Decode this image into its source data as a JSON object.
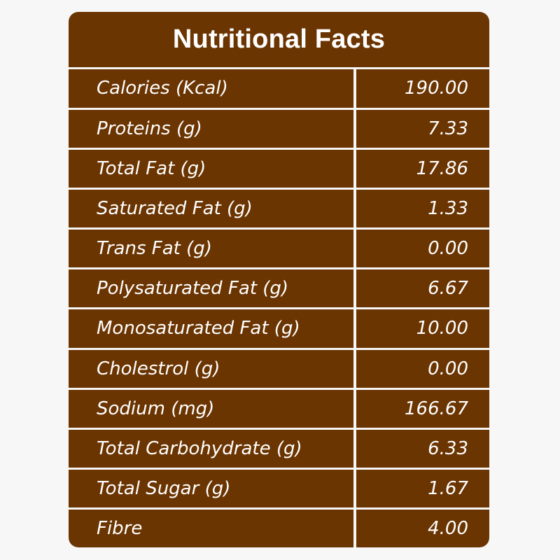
{
  "title": "Nutritional Facts",
  "rows": [
    {
      "label": "Calories (Kcal)",
      "value": "190.00"
    },
    {
      "label": "Proteins (g)",
      "value": "7.33"
    },
    {
      "label": "Total Fat (g)",
      "value": "17.86"
    },
    {
      "label": "Saturated Fat (g)",
      "value": "1.33"
    },
    {
      "label": "Trans Fat (g)",
      "value": "0.00"
    },
    {
      "label": "Polysaturated Fat (g)",
      "value": "6.67"
    },
    {
      "label": "Monosaturated Fat (g)",
      "value": "10.00"
    },
    {
      "label": "Cholestrol (g)",
      "value": "0.00"
    },
    {
      "label": "Sodium (mg)",
      "value": "166.67"
    },
    {
      "label": "Total Carbohydrate (g)",
      "value": "6.33"
    },
    {
      "label": "Total Sugar (g)",
      "value": "1.67"
    },
    {
      "label": "Fibre",
      "value": "4.00"
    }
  ],
  "colors": {
    "panel": "#6b3502",
    "divider": "#f7f7f7",
    "text": "#ffffff"
  }
}
